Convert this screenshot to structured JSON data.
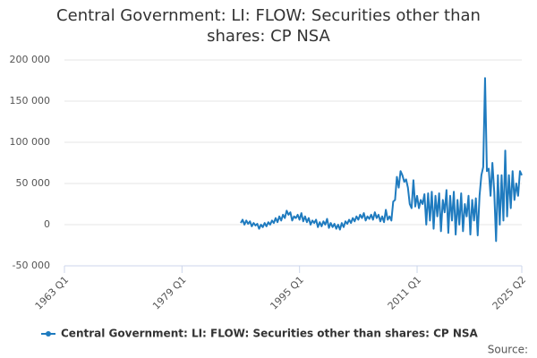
{
  "chart_data": {
    "type": "line",
    "title": "Central Government: LI: FLOW: Securities other than shares: CP NSA",
    "source": "Source:",
    "x": [
      "1987 Q1",
      "1987 Q2",
      "1987 Q3",
      "1987 Q4",
      "1988 Q1",
      "1988 Q2",
      "1988 Q3",
      "1988 Q4",
      "1989 Q1",
      "1989 Q2",
      "1989 Q3",
      "1989 Q4",
      "1990 Q1",
      "1990 Q2",
      "1990 Q3",
      "1990 Q4",
      "1991 Q1",
      "1991 Q2",
      "1991 Q3",
      "1991 Q4",
      "1992 Q1",
      "1992 Q2",
      "1992 Q3",
      "1992 Q4",
      "1993 Q1",
      "1993 Q2",
      "1993 Q3",
      "1993 Q4",
      "1994 Q1",
      "1994 Q2",
      "1994 Q3",
      "1994 Q4",
      "1995 Q1",
      "1995 Q2",
      "1995 Q3",
      "1995 Q4",
      "1996 Q1",
      "1996 Q2",
      "1996 Q3",
      "1996 Q4",
      "1997 Q1",
      "1997 Q2",
      "1997 Q3",
      "1997 Q4",
      "1998 Q1",
      "1998 Q2",
      "1998 Q3",
      "1998 Q4",
      "1999 Q1",
      "1999 Q2",
      "1999 Q3",
      "1999 Q4",
      "2000 Q1",
      "2000 Q2",
      "2000 Q3",
      "2000 Q4",
      "2001 Q1",
      "2001 Q2",
      "2001 Q3",
      "2001 Q4",
      "2002 Q1",
      "2002 Q2",
      "2002 Q3",
      "2002 Q4",
      "2003 Q1",
      "2003 Q2",
      "2003 Q3",
      "2003 Q4",
      "2004 Q1",
      "2004 Q2",
      "2004 Q3",
      "2004 Q4",
      "2005 Q1",
      "2005 Q2",
      "2005 Q3",
      "2005 Q4",
      "2006 Q1",
      "2006 Q2",
      "2006 Q3",
      "2006 Q4",
      "2007 Q1",
      "2007 Q2",
      "2007 Q3",
      "2007 Q4",
      "2008 Q1",
      "2008 Q2",
      "2008 Q3",
      "2008 Q4",
      "2009 Q1",
      "2009 Q2",
      "2009 Q3",
      "2009 Q4",
      "2010 Q1",
      "2010 Q2",
      "2010 Q3",
      "2010 Q4",
      "2011 Q1",
      "2011 Q2",
      "2011 Q3",
      "2011 Q4",
      "2012 Q1",
      "2012 Q2",
      "2012 Q3",
      "2012 Q4",
      "2013 Q1",
      "2013 Q2",
      "2013 Q3",
      "2013 Q4",
      "2014 Q1",
      "2014 Q2",
      "2014 Q3",
      "2014 Q4",
      "2015 Q1",
      "2015 Q2",
      "2015 Q3",
      "2015 Q4",
      "2016 Q1",
      "2016 Q2",
      "2016 Q3",
      "2016 Q4",
      "2017 Q1",
      "2017 Q2",
      "2017 Q3",
      "2017 Q4",
      "2018 Q1",
      "2018 Q2",
      "2018 Q3",
      "2018 Q4",
      "2019 Q1",
      "2019 Q2",
      "2019 Q3",
      "2019 Q4",
      "2020 Q1",
      "2020 Q2",
      "2020 Q3",
      "2020 Q4",
      "2021 Q1",
      "2021 Q2",
      "2021 Q3",
      "2021 Q4",
      "2022 Q1",
      "2022 Q2",
      "2022 Q3",
      "2022 Q4",
      "2023 Q1",
      "2023 Q2",
      "2023 Q3",
      "2023 Q4",
      "2024 Q1",
      "2024 Q2",
      "2024 Q3",
      "2024 Q4",
      "2025 Q1",
      "2025 Q2"
    ],
    "series": [
      {
        "name": "Central Government: LI: FLOW: Securities other than shares: CP NSA",
        "color": "#1f7bbf",
        "values": [
          2000,
          6000,
          0,
          5000,
          1000,
          4000,
          -2000,
          2000,
          -1000,
          1000,
          -5000,
          0,
          -3000,
          2000,
          -2000,
          3000,
          0,
          5000,
          2000,
          8000,
          3000,
          10000,
          5000,
          12000,
          8000,
          17000,
          12000,
          15000,
          5000,
          10000,
          8000,
          12000,
          6000,
          14000,
          4000,
          10000,
          3000,
          8000,
          0,
          5000,
          2000,
          6000,
          -3000,
          3000,
          -2000,
          4000,
          0,
          7000,
          -4000,
          2000,
          -3000,
          1000,
          -5000,
          0,
          -6000,
          2000,
          -3000,
          4000,
          1000,
          6000,
          2000,
          8000,
          4000,
          10000,
          6000,
          12000,
          8000,
          14000,
          5000,
          10000,
          7000,
          12000,
          6000,
          15000,
          8000,
          12000,
          4000,
          10000,
          3000,
          18000,
          6000,
          10000,
          5000,
          28000,
          30000,
          58000,
          45000,
          65000,
          60000,
          52000,
          55000,
          45000,
          25000,
          20000,
          54000,
          22000,
          35000,
          20000,
          30000,
          25000,
          37000,
          0,
          38000,
          5000,
          40000,
          -5000,
          35000,
          10000,
          38000,
          -8000,
          30000,
          15000,
          42000,
          -10000,
          35000,
          5000,
          40000,
          -12000,
          30000,
          0,
          38000,
          -8000,
          25000,
          10000,
          35000,
          -12000,
          30000,
          5000,
          32000,
          -13000,
          35000,
          60000,
          70000,
          178000,
          65000,
          68000,
          35000,
          75000,
          40000,
          -20000,
          60000,
          0,
          60000,
          5000,
          90000,
          10000,
          60000,
          20000,
          65000,
          30000,
          50000,
          35000,
          65000,
          60000
        ]
      }
    ],
    "xlim": [
      "1963 Q1",
      "2025 Q2"
    ],
    "xticks": [
      "1963 Q1",
      "1979 Q1",
      "1995 Q1",
      "2011 Q1",
      "2025 Q2"
    ],
    "ylim": [
      -50000,
      200000
    ],
    "yticks": [
      {
        "value": -50000,
        "label": "-50 000"
      },
      0,
      {
        "value": 50000,
        "label": "50 000"
      },
      {
        "value": 100000,
        "label": "100 000"
      },
      {
        "value": 150000,
        "label": "150 000"
      },
      {
        "value": 200000,
        "label": "200 000"
      }
    ],
    "grid": true
  }
}
